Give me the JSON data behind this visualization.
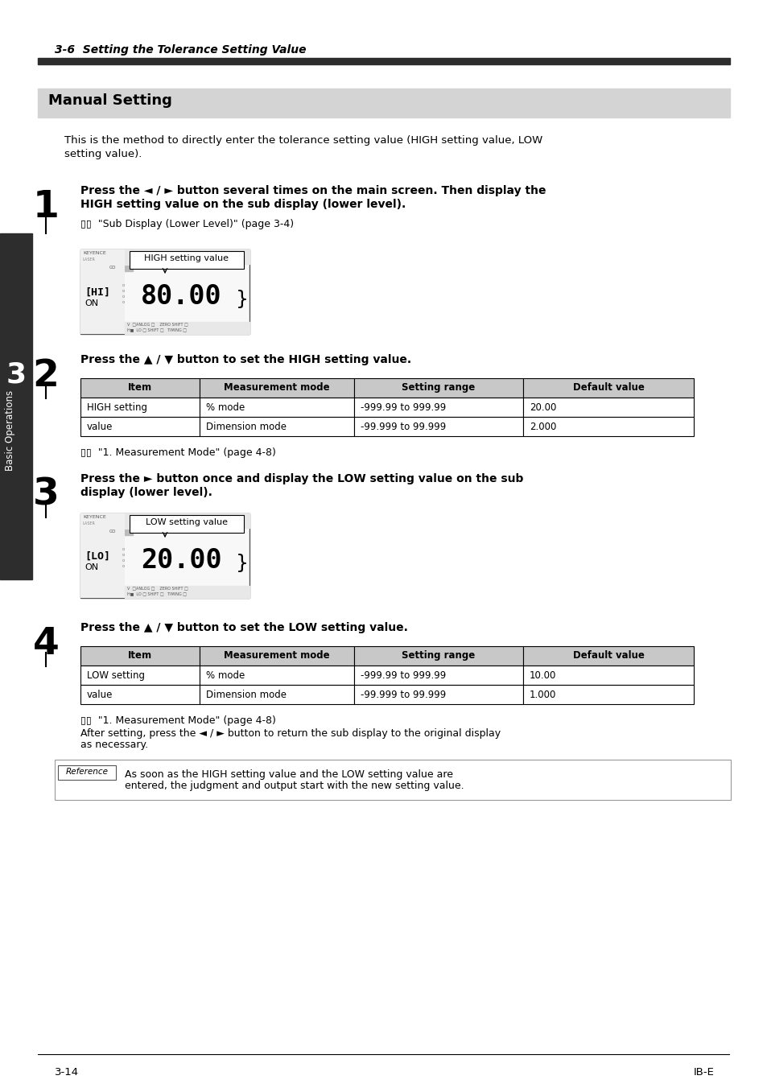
{
  "page_title": "3-6  Setting the Tolerance Setting Value",
  "section_title": "Manual Setting",
  "section_bg": "#d4d4d4",
  "intro_text_line1": "This is the method to directly enter the tolerance setting value (HIGH setting value, LOW",
  "intro_text_line2": "setting value).",
  "step1_line1": "Press the ◄ / ► button several times on the main screen. Then display the",
  "step1_line2": "HIGH setting value on the sub display (lower level).",
  "step1_ref": "▯▯  \"Sub Display (Lower Level)\" (page 3-4)",
  "step2_bold": "Press the ▲ / ▼ button to set the HIGH setting value.",
  "step2_ref": "▯▯  \"1. Measurement Mode\" (page 4-8)",
  "step3_line1": "Press the ► button once and display the LOW setting value on the sub",
  "step3_line2": "display (lower level).",
  "step4_bold": "Press the ▲ / ▼ button to set the LOW setting value.",
  "step4_ref_line1": "▯▯  \"1. Measurement Mode\" (page 4-8)",
  "step4_ref_line2": "After setting, press the ◄ / ► button to return the sub display to the original display",
  "step4_ref_line3": "as necessary.",
  "table1_headers": [
    "Item",
    "Measurement mode",
    "Setting range",
    "Default value"
  ],
  "table1_row1": [
    "HIGH setting",
    "% mode",
    "-999.99 to 999.99",
    "20.00"
  ],
  "table1_row2": [
    "value",
    "Dimension mode",
    "-99.999 to 99.999",
    "2.000"
  ],
  "table2_headers": [
    "Item",
    "Measurement mode",
    "Setting range",
    "Default value"
  ],
  "table2_row1": [
    "LOW setting",
    "% mode",
    "-999.99 to 999.99",
    "10.00"
  ],
  "table2_row2": [
    "value",
    "Dimension mode",
    "-99.999 to 99.999",
    "1.000"
  ],
  "ref_line1": "As soon as the HIGH setting value and the LOW setting value are",
  "ref_line2": "entered, the judgment and output start with the new setting value.",
  "footer_left": "3-14",
  "footer_right": "IB-E",
  "sidebar_text": "Basic Operations",
  "sidebar_number": "3",
  "dark_color": "#2d2d2d",
  "sidebar_color": "#2d2d2d",
  "table_header_color": "#c8c8c8",
  "section_gray": "#d4d4d4"
}
